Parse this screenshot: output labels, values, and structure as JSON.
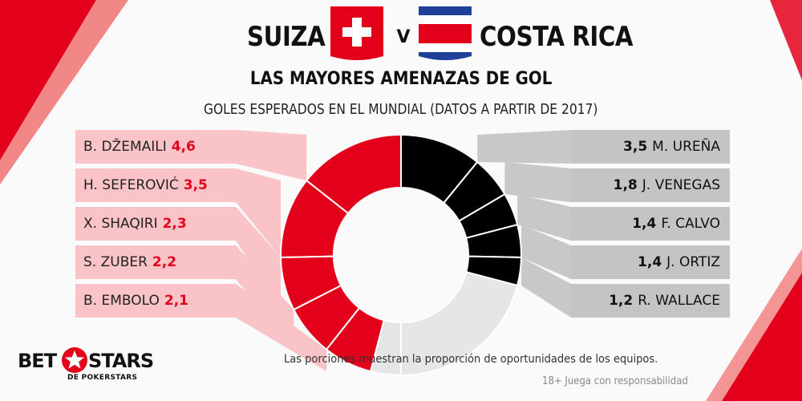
{
  "header": {
    "team_home": "SUIZA",
    "vs": "V",
    "team_away": "COSTA RICA",
    "title": "LAS MAYORES AMENAZAS DE GOL",
    "subtitle": "GOLES ESPERADOS EN EL MUNDIAL (DATOS A PARTIR DE 2017)"
  },
  "colors": {
    "home": "#e3001b",
    "home_row_bg": "#f9c3c7",
    "away": "#000000",
    "away_row_bg": "#c4c4c4",
    "remainder": "#e6e6e6",
    "connector_home": "#f9c3c7",
    "connector_away": "#c8c8c8"
  },
  "chart_data": {
    "type": "pie",
    "style": "donut",
    "series": [
      {
        "name": "SUIZA",
        "players": [
          "B. DŽEMAILI",
          "H. SEFEROVIĆ",
          "X. SHAQIRI",
          "S. ZUBER",
          "B. EMBOLO"
        ],
        "values": [
          4.6,
          3.5,
          2.3,
          2.2,
          2.1
        ],
        "value_labels": [
          "4,6",
          "3,5",
          "2,3",
          "2,2",
          "2,1"
        ]
      },
      {
        "name": "COSTA RICA",
        "players": [
          "M. UREÑA",
          "J. VENEGAS",
          "F. CALVO",
          "J. ORTIZ",
          "R. WALLACE"
        ],
        "values": [
          3.5,
          1.8,
          1.4,
          1.4,
          1.2
        ],
        "value_labels": [
          "3,5",
          "1,8",
          "1,4",
          "1,4",
          "1,2"
        ]
      }
    ]
  },
  "footnote": "Las porciones muestran la proporción de oportunidades de los equipos.",
  "disclaimer": "18+ Juega con responsabilidad",
  "logo": {
    "word1": "BET",
    "word2": "STARS",
    "tagline": "DE POKERSTARS"
  }
}
